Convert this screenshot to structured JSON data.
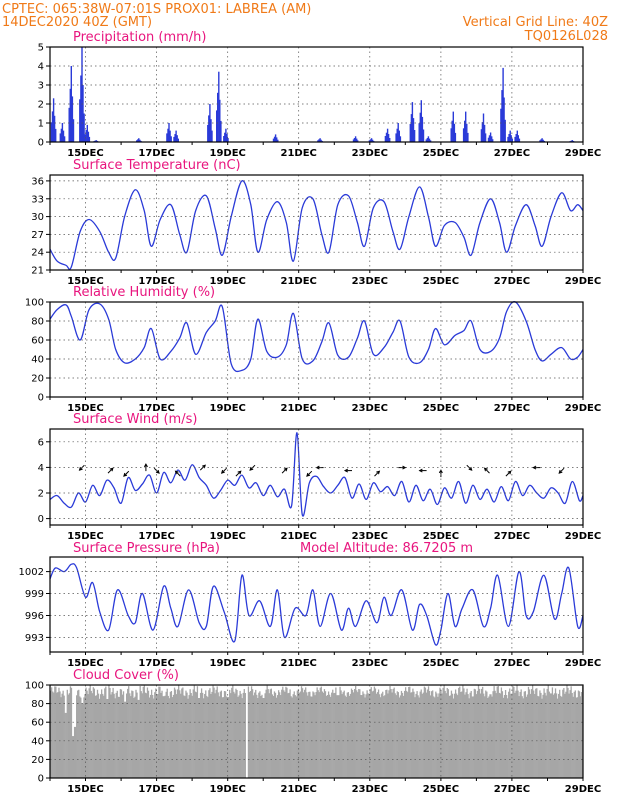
{
  "header": {
    "line1_left": "CPTEC:   065:38W-07:01S   PROX01: LABREA (AM)",
    "line2_left": "14DEC2020 40Z (GMT)",
    "line2_right": "Vertical Grid Line: 40Z",
    "line3_right": "TQ0126L028",
    "model_altitude": "Model Altitude: 86.7205 m"
  },
  "colors": {
    "header": "#f07a18",
    "title": "#e8157e",
    "series": "#2a3ad8",
    "cloud": "#a6a6a6",
    "arrow": "#000000"
  },
  "x_axis": {
    "range_days": [
      0,
      15
    ],
    "ticks": [
      {
        "day": 1,
        "label": "15DEC"
      },
      {
        "day": 3,
        "label": "17DEC"
      },
      {
        "day": 5,
        "label": "19DEC"
      },
      {
        "day": 7,
        "label": "21DEC"
      },
      {
        "day": 9,
        "label": "23DEC"
      },
      {
        "day": 11,
        "label": "25DEC"
      },
      {
        "day": 13,
        "label": "27DEC"
      },
      {
        "day": 15,
        "label": "29DEC"
      }
    ]
  },
  "chart_data": [
    {
      "type": "bar",
      "title": "Precipitation (mm/h)",
      "ylim": [
        0,
        5
      ],
      "yticks": [
        0,
        1,
        2,
        3,
        4,
        5
      ],
      "grid": true,
      "bursts": [
        {
          "day": 0.1,
          "peak": 2.3
        },
        {
          "day": 0.35,
          "peak": 1.0
        },
        {
          "day": 0.6,
          "peak": 4.0
        },
        {
          "day": 0.9,
          "peak": 5.0
        },
        {
          "day": 1.05,
          "peak": 0.9
        },
        {
          "day": 1.3,
          "peak": 0.1
        },
        {
          "day": 2.5,
          "peak": 0.2
        },
        {
          "day": 3.35,
          "peak": 1.0
        },
        {
          "day": 3.55,
          "peak": 0.6
        },
        {
          "day": 4.5,
          "peak": 2.0
        },
        {
          "day": 4.75,
          "peak": 3.7
        },
        {
          "day": 4.95,
          "peak": 0.7
        },
        {
          "day": 6.35,
          "peak": 0.4
        },
        {
          "day": 7.6,
          "peak": 0.2
        },
        {
          "day": 8.6,
          "peak": 0.3
        },
        {
          "day": 9.05,
          "peak": 0.2
        },
        {
          "day": 9.5,
          "peak": 0.7
        },
        {
          "day": 9.8,
          "peak": 1.0
        },
        {
          "day": 10.2,
          "peak": 2.1
        },
        {
          "day": 10.45,
          "peak": 2.2
        },
        {
          "day": 10.65,
          "peak": 0.3
        },
        {
          "day": 11.35,
          "peak": 1.6
        },
        {
          "day": 11.7,
          "peak": 1.6
        },
        {
          "day": 12.2,
          "peak": 1.5
        },
        {
          "day": 12.4,
          "peak": 0.5
        },
        {
          "day": 12.75,
          "peak": 3.9
        },
        {
          "day": 12.95,
          "peak": 0.6
        },
        {
          "day": 13.15,
          "peak": 0.6
        },
        {
          "day": 13.85,
          "peak": 0.2
        },
        {
          "day": 14.7,
          "peak": 0.1
        }
      ]
    },
    {
      "type": "line",
      "title": "Surface Temperature (nC)",
      "ylim": [
        21,
        37
      ],
      "yticks": [
        21,
        24,
        27,
        30,
        33,
        36
      ],
      "grid": true,
      "x_days": [
        0,
        0.2,
        0.45,
        0.6,
        0.85,
        1.1,
        1.4,
        1.65,
        1.85,
        2.1,
        2.4,
        2.65,
        2.85,
        3.1,
        3.4,
        3.65,
        3.85,
        4.1,
        4.4,
        4.65,
        4.85,
        5.1,
        5.4,
        5.65,
        5.85,
        6.1,
        6.4,
        6.65,
        6.85,
        7.1,
        7.4,
        7.65,
        7.85,
        8.1,
        8.4,
        8.65,
        8.85,
        9.1,
        9.4,
        9.65,
        9.85,
        10.1,
        10.4,
        10.65,
        10.85,
        11.1,
        11.4,
        11.65,
        11.85,
        12.1,
        12.4,
        12.65,
        12.85,
        13.1,
        13.4,
        13.65,
        13.85,
        14.1,
        14.4,
        14.65,
        14.85,
        15
      ],
      "values": [
        24.5,
        22.5,
        21.8,
        21.5,
        27.5,
        29.5,
        27.5,
        24,
        23,
        30,
        34.5,
        31,
        25,
        29.5,
        32,
        27,
        24,
        31,
        33.5,
        28,
        23.5,
        30,
        36,
        32,
        24,
        29.5,
        32.5,
        29,
        22.5,
        31.5,
        33,
        27,
        24,
        32,
        33.5,
        29,
        25,
        31.5,
        32.5,
        27.5,
        24.5,
        30,
        35,
        30,
        25,
        28.5,
        29,
        26.5,
        23.5,
        29,
        33,
        29,
        24,
        28.5,
        32,
        28.5,
        25,
        30,
        34,
        31,
        32,
        31
      ]
    },
    {
      "type": "line",
      "title": "Relative Humidity (%)",
      "ylim": [
        0,
        100
      ],
      "yticks": [
        0,
        20,
        40,
        60,
        80,
        100
      ],
      "grid": true,
      "x_days": [
        0,
        0.2,
        0.45,
        0.6,
        0.85,
        1.1,
        1.4,
        1.65,
        1.85,
        2.1,
        2.4,
        2.65,
        2.85,
        3.1,
        3.4,
        3.65,
        3.85,
        4.1,
        4.4,
        4.65,
        4.85,
        5.1,
        5.4,
        5.65,
        5.85,
        6.1,
        6.4,
        6.65,
        6.85,
        7.1,
        7.4,
        7.65,
        7.85,
        8.1,
        8.4,
        8.65,
        8.85,
        9.1,
        9.4,
        9.65,
        9.85,
        10.1,
        10.4,
        10.65,
        10.85,
        11.1,
        11.4,
        11.65,
        11.85,
        12.1,
        12.4,
        12.65,
        12.85,
        13.1,
        13.4,
        13.65,
        13.85,
        14.1,
        14.4,
        14.65,
        14.85,
        15
      ],
      "values": [
        82,
        92,
        97,
        85,
        60,
        92,
        98,
        82,
        50,
        36,
        40,
        52,
        72,
        40,
        48,
        62,
        78,
        45,
        68,
        80,
        95,
        35,
        28,
        40,
        82,
        48,
        42,
        55,
        88,
        40,
        38,
        58,
        78,
        44,
        42,
        62,
        80,
        45,
        52,
        68,
        80,
        42,
        36,
        50,
        72,
        55,
        65,
        70,
        80,
        50,
        48,
        62,
        90,
        100,
        80,
        50,
        38,
        45,
        52,
        40,
        42,
        50
      ]
    },
    {
      "type": "line",
      "title": "Surface Wind (m/s)",
      "ylim": [
        -0.5,
        7
      ],
      "yticks": [
        0,
        2,
        4,
        6
      ],
      "grid": true,
      "x_days": [
        0,
        0.2,
        0.4,
        0.6,
        0.8,
        1.0,
        1.2,
        1.4,
        1.6,
        1.8,
        2.0,
        2.2,
        2.4,
        2.6,
        2.8,
        3.0,
        3.2,
        3.4,
        3.6,
        3.8,
        4.0,
        4.2,
        4.4,
        4.6,
        4.8,
        5.0,
        5.2,
        5.4,
        5.6,
        5.8,
        6.0,
        6.2,
        6.4,
        6.6,
        6.8,
        6.95,
        7.1,
        7.3,
        7.5,
        7.7,
        7.9,
        8.1,
        8.3,
        8.5,
        8.7,
        8.9,
        9.1,
        9.3,
        9.5,
        9.7,
        9.9,
        10.1,
        10.3,
        10.5,
        10.7,
        10.9,
        11.1,
        11.3,
        11.5,
        11.7,
        11.9,
        12.1,
        12.3,
        12.5,
        12.7,
        12.9,
        13.1,
        13.3,
        13.5,
        13.7,
        13.9,
        14.1,
        14.3,
        14.5,
        14.7,
        14.9,
        15
      ],
      "values": [
        1.5,
        1.8,
        1.2,
        0.9,
        2.0,
        1.3,
        2.6,
        1.8,
        3.0,
        2.4,
        1.2,
        3.2,
        2.2,
        2.7,
        3.4,
        2.0,
        3.6,
        2.8,
        3.8,
        3.0,
        4.2,
        3.2,
        2.6,
        1.6,
        2.2,
        3.0,
        2.6,
        3.4,
        2.4,
        2.8,
        1.8,
        2.6,
        1.7,
        2.3,
        1.0,
        6.7,
        0.3,
        2.8,
        3.3,
        2.5,
        2.0,
        2.6,
        3.2,
        1.6,
        2.7,
        1.5,
        2.8,
        2.1,
        2.5,
        1.8,
        2.9,
        1.3,
        2.6,
        1.4,
        2.3,
        1.1,
        2.4,
        1.6,
        2.9,
        1.2,
        2.6,
        1.5,
        2.3,
        1.3,
        2.5,
        1.4,
        2.9,
        1.8,
        2.6,
        2.0,
        1.6,
        2.4,
        2.0,
        1.2,
        2.9,
        1.4,
        1.8
      ],
      "arrows": [
        {
          "day": 0.9,
          "dir": "sw"
        },
        {
          "day": 1.7,
          "dir": "ne"
        },
        {
          "day": 2.15,
          "dir": "sw"
        },
        {
          "day": 2.7,
          "dir": "n"
        },
        {
          "day": 3.0,
          "dir": "se"
        },
        {
          "day": 3.6,
          "dir": "nw"
        },
        {
          "day": 4.3,
          "dir": "ne"
        },
        {
          "day": 4.9,
          "dir": "sw"
        },
        {
          "day": 5.3,
          "dir": "ne"
        },
        {
          "day": 5.7,
          "dir": "sw"
        },
        {
          "day": 6.6,
          "dir": "ne"
        },
        {
          "day": 7.3,
          "dir": "sw"
        },
        {
          "day": 7.6,
          "dir": "w"
        },
        {
          "day": 8.4,
          "dir": "w"
        },
        {
          "day": 9.2,
          "dir": "ne"
        },
        {
          "day": 9.9,
          "dir": "e"
        },
        {
          "day": 10.5,
          "dir": "w"
        },
        {
          "day": 11.0,
          "dir": "n"
        },
        {
          "day": 11.8,
          "dir": "se"
        },
        {
          "day": 12.3,
          "dir": "nw"
        },
        {
          "day": 12.9,
          "dir": "ne"
        },
        {
          "day": 13.7,
          "dir": "w"
        },
        {
          "day": 14.4,
          "dir": "sw"
        }
      ]
    },
    {
      "type": "line",
      "title": "Surface Pressure (hPa)",
      "ylim": [
        991,
        1004
      ],
      "yticks": [
        993,
        996,
        999,
        1002
      ],
      "grid": true,
      "x_days": [
        0,
        0.15,
        0.4,
        0.6,
        0.75,
        1.0,
        1.2,
        1.4,
        1.65,
        1.9,
        2.2,
        2.4,
        2.6,
        2.9,
        3.2,
        3.4,
        3.6,
        3.9,
        4.2,
        4.4,
        4.6,
        4.9,
        5.2,
        5.4,
        5.6,
        5.9,
        6.2,
        6.4,
        6.6,
        6.9,
        7.2,
        7.4,
        7.6,
        7.9,
        8.2,
        8.4,
        8.6,
        8.9,
        9.2,
        9.4,
        9.6,
        9.9,
        10.2,
        10.4,
        10.6,
        10.85,
        11.0,
        11.2,
        11.4,
        11.6,
        11.9,
        12.2,
        12.4,
        12.6,
        12.9,
        13.2,
        13.4,
        13.6,
        13.9,
        14.2,
        14.4,
        14.6,
        14.85,
        15
      ],
      "values": [
        1001,
        1002.5,
        1002,
        1003,
        1002.5,
        998.5,
        1000.5,
        996.5,
        994,
        999.5,
        996,
        995,
        999,
        994,
        1000,
        997,
        994.5,
        999.5,
        995,
        994.5,
        1000,
        996.5,
        992.5,
        1001.5,
        996,
        998,
        994.5,
        999.5,
        993,
        997,
        996,
        999.5,
        994.5,
        999,
        994,
        997,
        994.5,
        998,
        995,
        998.5,
        996,
        999.5,
        994,
        997.5,
        996,
        992,
        994,
        999,
        994.5,
        997,
        999.5,
        994.5,
        997,
        1001.5,
        994.5,
        1002,
        996,
        996.5,
        1001.5,
        995.5,
        999,
        1002.5,
        994.5,
        996
      ]
    },
    {
      "type": "bar",
      "title": "Cloud Cover (%)",
      "ylim": [
        0,
        100
      ],
      "yticks": [
        0,
        20,
        40,
        60,
        80,
        100
      ],
      "grid": true,
      "bins": 512,
      "baseline": 94,
      "dips": [
        {
          "day": 0.45,
          "value": 70
        },
        {
          "day": 0.65,
          "value": 45
        },
        {
          "day": 0.7,
          "value": 55
        },
        {
          "day": 0.9,
          "value": 80
        },
        {
          "day": 1.6,
          "value": 85
        },
        {
          "day": 2.1,
          "value": 82
        },
        {
          "day": 2.5,
          "value": 84
        },
        {
          "day": 3.2,
          "value": 88
        },
        {
          "day": 4.2,
          "value": 86
        },
        {
          "day": 5.0,
          "value": 87
        },
        {
          "day": 5.55,
          "value": 0
        },
        {
          "day": 6.0,
          "value": 86
        },
        {
          "day": 6.8,
          "value": 88
        },
        {
          "day": 8.1,
          "value": 89
        },
        {
          "day": 9.3,
          "value": 90
        },
        {
          "day": 10.9,
          "value": 91
        },
        {
          "day": 12.4,
          "value": 90
        },
        {
          "day": 14.1,
          "value": 91
        }
      ]
    }
  ]
}
